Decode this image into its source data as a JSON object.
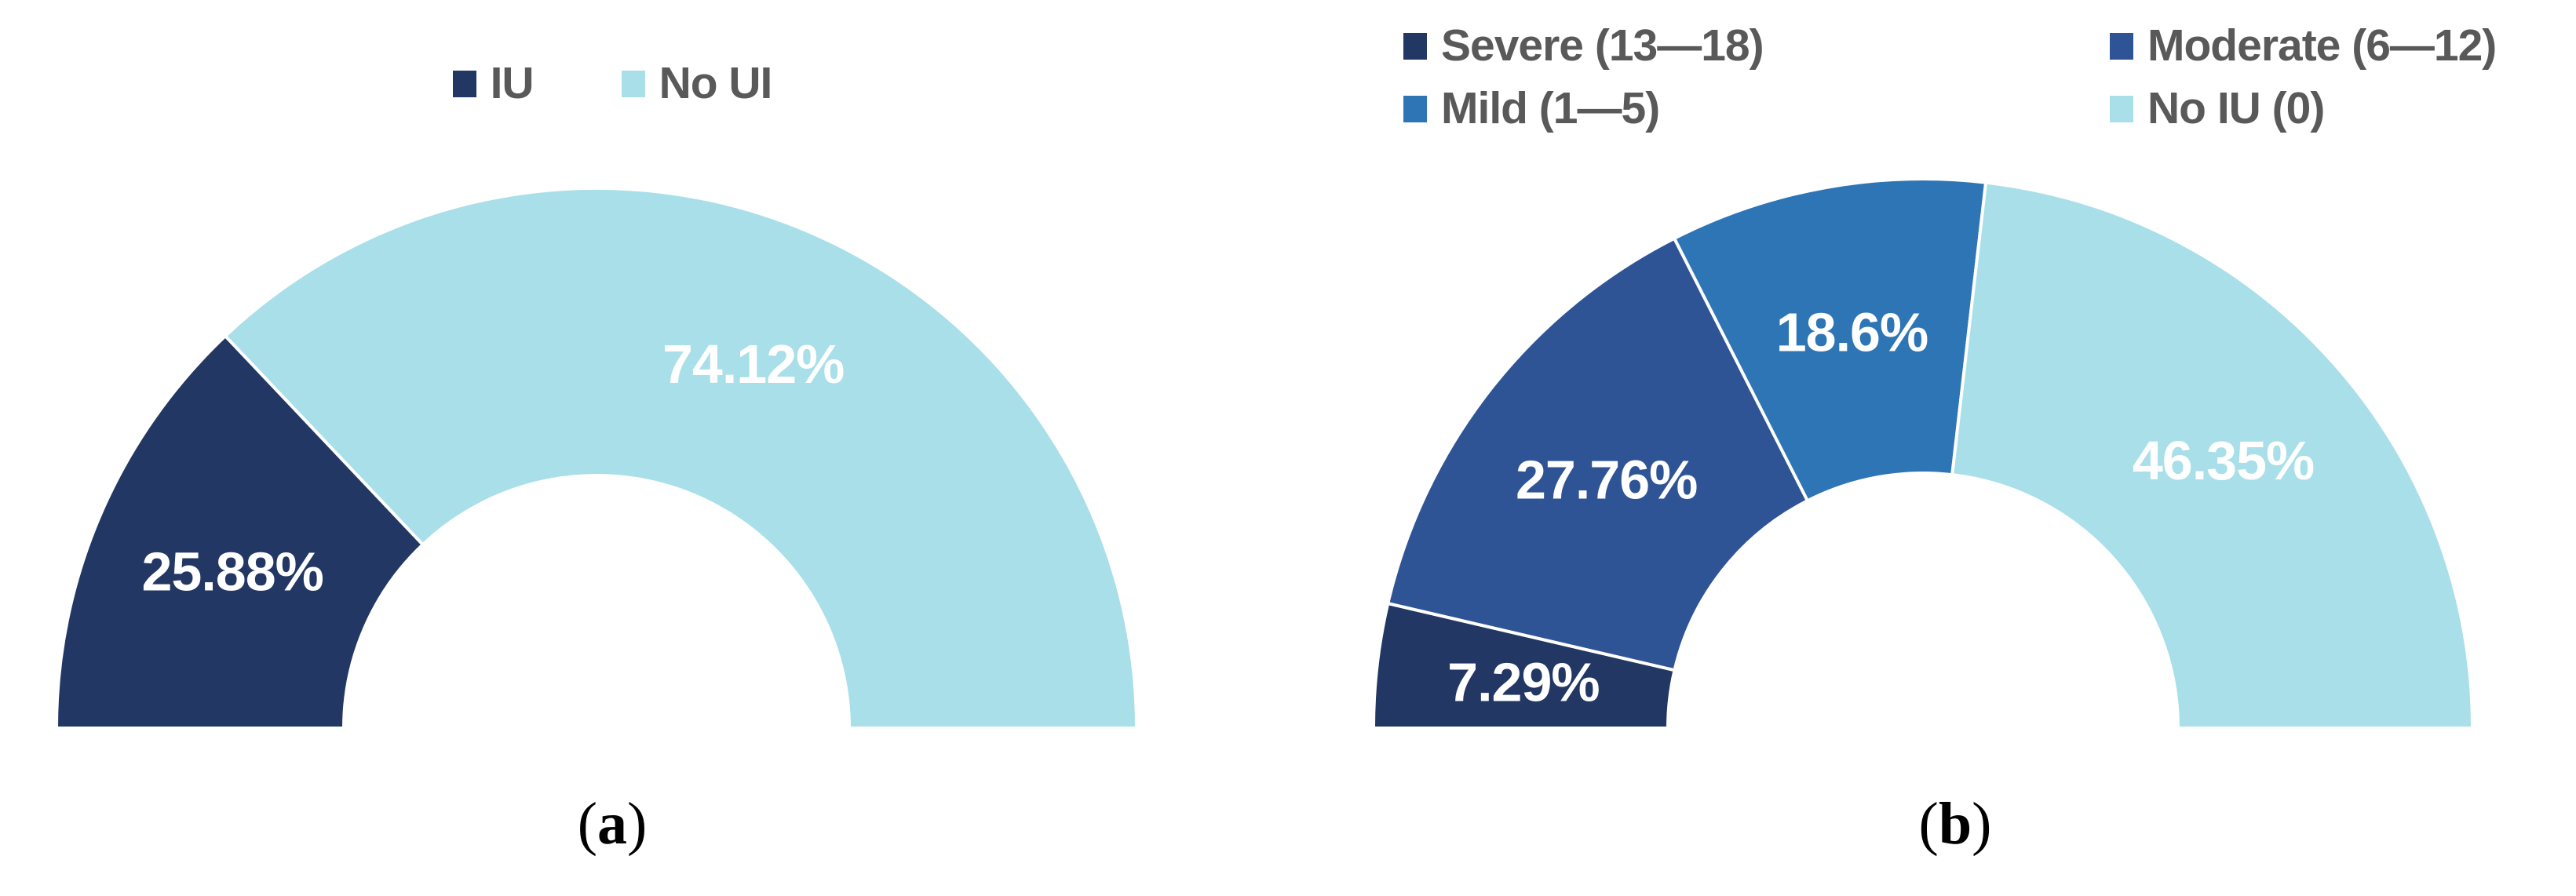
{
  "chart_data": [
    {
      "id": "a",
      "type": "pie",
      "subtype": "half-donut",
      "title": "",
      "legend_position": "top-center",
      "caption": {
        "open": "(",
        "letter": "a",
        "close": ")"
      },
      "segments": [
        {
          "label": "IU",
          "value": 25.88,
          "display": "25.88%",
          "color": "#223763"
        },
        {
          "label": "No UI",
          "value": 74.12,
          "display": "74.12%",
          "color": "#A8DFE9"
        }
      ]
    },
    {
      "id": "b",
      "type": "pie",
      "subtype": "half-donut",
      "title": "",
      "legend_position": "top-two-columns",
      "caption": {
        "open": "(",
        "letter": "b",
        "close": ")"
      },
      "segments": [
        {
          "label": "Severe (13—18)",
          "value": 7.29,
          "display": "7.29%",
          "color": "#223763"
        },
        {
          "label": "Moderate (6—12)",
          "value": 27.76,
          "display": "27.76%",
          "color": "#2F5496"
        },
        {
          "label": "Mild (1—5)",
          "value": 18.6,
          "display": "18.6%",
          "color": "#2E75B6"
        },
        {
          "label": "No IU (0)",
          "value": 46.35,
          "display": "46.35%",
          "color": "#A8DFE9"
        }
      ]
    }
  ]
}
